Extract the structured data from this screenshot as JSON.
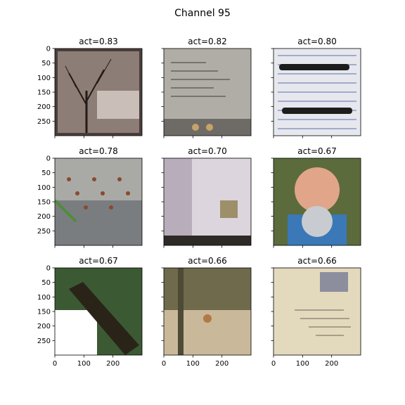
{
  "title": "Channel 95",
  "chart_data": {
    "type": "image-grid",
    "title": "Channel 95",
    "rows": 3,
    "cols": 3,
    "axis_range": [
      0,
      299
    ],
    "xticks": [
      0,
      100,
      200
    ],
    "yticks": [
      0,
      50,
      100,
      150,
      200,
      250
    ],
    "panels": [
      {
        "title": "act=0.83",
        "act": 0.83,
        "scene": "bare-tree",
        "colors": [
          "#4a3e3a",
          "#8c7d76",
          "#c9beb8",
          "#241b18"
        ]
      },
      {
        "title": "act=0.82",
        "act": 0.82,
        "scene": "chalk-writing",
        "colors": [
          "#8a8781",
          "#b0ada6",
          "#6e6b66",
          "#c7a36a"
        ]
      },
      {
        "title": "act=0.80",
        "act": 0.8,
        "scene": "pens-on-paper",
        "colors": [
          "#cfd6e3",
          "#2e4a8c",
          "#1d1d1d",
          "#e6e8ee"
        ]
      },
      {
        "title": "act=0.78",
        "act": 0.78,
        "scene": "ants-on-rock",
        "colors": [
          "#7a7d80",
          "#a9aaa6",
          "#8a4a2c",
          "#4f8d3a"
        ]
      },
      {
        "title": "act=0.70",
        "act": 0.7,
        "scene": "fabric",
        "colors": [
          "#dcd5dd",
          "#b8aebb",
          "#9c8f6a",
          "#2e2a26"
        ]
      },
      {
        "title": "act=0.67",
        "act": 0.67,
        "scene": "selfie",
        "colors": [
          "#e1a58a",
          "#3a78b8",
          "#c8ccd0",
          "#5b6b3c"
        ]
      },
      {
        "title": "act=0.67",
        "act": 0.67,
        "scene": "tree-sign",
        "colors": [
          "#3b5a34",
          "#2a2418",
          "#ffffff",
          "#a78a5a"
        ]
      },
      {
        "title": "act=0.66",
        "act": 0.66,
        "scene": "field-deer",
        "colors": [
          "#a39b7e",
          "#6f6a4c",
          "#c9b99a",
          "#4d4a35"
        ]
      },
      {
        "title": "act=0.66",
        "act": 0.66,
        "scene": "envelope",
        "colors": [
          "#e3d9bd",
          "#8d8e9d",
          "#6b6457",
          "#d6cbac"
        ]
      }
    ]
  }
}
